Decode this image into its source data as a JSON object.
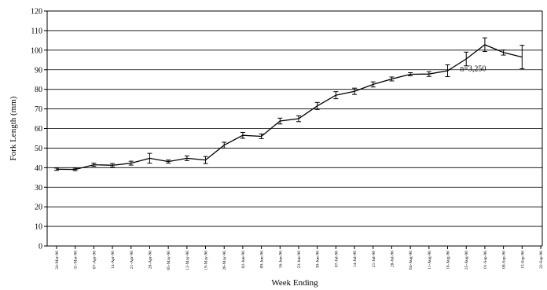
{
  "chart_data": {
    "type": "line",
    "title": "",
    "xlabel": "Week Ending",
    "ylabel": "Fork Length (mm)",
    "ylim": [
      0,
      120
    ],
    "yticks": [
      0,
      10,
      20,
      30,
      40,
      50,
      60,
      70,
      80,
      90,
      100,
      110,
      120
    ],
    "grid": "horizontal",
    "categories": [
      "24-Mar-96",
      "31-Mar-96",
      "07-Apr-96",
      "14-Apr-96",
      "21-Apr-96",
      "28-Apr-96",
      "05-May-96",
      "12-May-96",
      "19-May-96",
      "26-May-96",
      "02-Jun-96",
      "09-Jun-96",
      "16-Jun-96",
      "23-Jun-96",
      "30-Jun-96",
      "07-Jul-96",
      "14-Jul-96",
      "21-Jul-96",
      "28-Jul-96",
      "04-Aug-96",
      "11-Aug-96",
      "18-Aug-96",
      "25-Aug-96",
      "01-Sep-96",
      "08-Sep-96",
      "15-Sep-96",
      "22-Sep-96"
    ],
    "series": [
      {
        "values": [
          39.2,
          39.1,
          41.5,
          41.2,
          42.3,
          44.8,
          43.1,
          44.8,
          43.9,
          51.5,
          56.5,
          56.0,
          63.8,
          65.0,
          71.5,
          77.0,
          79.0,
          82.5,
          85.3,
          87.7,
          87.8,
          89.5,
          95.5,
          102.8,
          98.8,
          96.5,
          null
        ],
        "err": [
          0.6,
          0.6,
          0.8,
          0.9,
          1.0,
          2.5,
          0.8,
          1.2,
          1.8,
          1.5,
          1.5,
          1.2,
          1.5,
          1.5,
          1.8,
          1.8,
          1.6,
          1.3,
          1.0,
          0.8,
          1.2,
          3.0,
          3.5,
          3.5,
          1.3,
          6.0,
          null
        ]
      }
    ],
    "annotation": {
      "text": "n=3,250",
      "x_index": 22,
      "y": 91
    }
  }
}
